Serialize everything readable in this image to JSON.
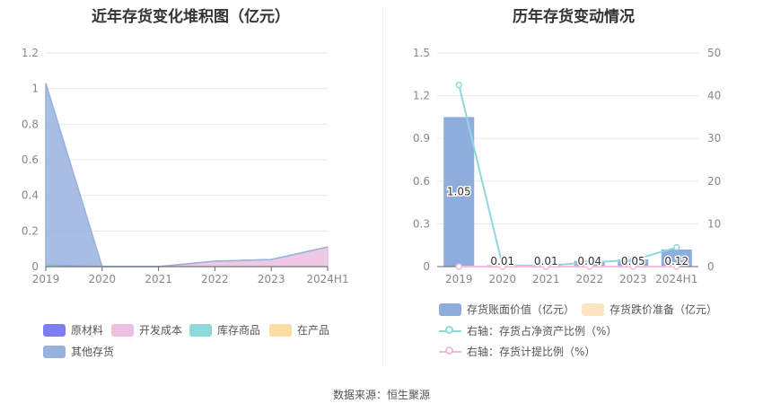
{
  "source_text": "数据来源：恒生聚源",
  "chart_data": [
    {
      "type": "area",
      "title": "近年存货变化堆积图（亿元）",
      "categories": [
        "2019",
        "2020",
        "2021",
        "2022",
        "2023",
        "2024H1"
      ],
      "y_ticks": [
        "0",
        "0.2",
        "0.4",
        "0.6",
        "0.8",
        "1",
        "1.2"
      ],
      "ylim": [
        0,
        1.2
      ],
      "stacked": true,
      "series": [
        {
          "name": "原材料",
          "color": "#7b7ff2",
          "values": [
            0,
            0,
            0,
            0,
            0,
            0
          ]
        },
        {
          "name": "开发成本",
          "color": "#ebbfdf",
          "values": [
            0,
            0,
            0,
            0.03,
            0.04,
            0.11
          ]
        },
        {
          "name": "库存商品",
          "color": "#8fd8dc",
          "values": [
            0.01,
            0,
            0,
            0,
            0,
            0
          ]
        },
        {
          "name": "在产品",
          "color": "#fcdca0",
          "values": [
            0,
            0,
            0,
            0,
            0,
            0
          ]
        },
        {
          "name": "其他存货",
          "color": "#98b2de",
          "values": [
            1.02,
            0,
            0,
            0,
            0,
            0
          ]
        }
      ],
      "legend_position": "bottom"
    },
    {
      "type": "bar",
      "title": "历年存货变动情况",
      "categories": [
        "2019",
        "2020",
        "2021",
        "2022",
        "2023",
        "2024H1"
      ],
      "left_ticks": [
        "0",
        "0.3",
        "0.6",
        "0.9",
        "1.2",
        "1.5"
      ],
      "right_ticks": [
        "0",
        "10",
        "20",
        "30",
        "40",
        "50"
      ],
      "ylim_left": [
        0,
        1.5
      ],
      "ylim_right": [
        0,
        50
      ],
      "bars": {
        "name": "存货账面价值（亿元）",
        "color": "#8eacdc",
        "values": [
          1.05,
          0.01,
          0.01,
          0.04,
          0.05,
          0.12
        ],
        "labels": [
          "1.05",
          "0.01",
          "0.01",
          "0.04",
          "0.05",
          "0.12"
        ]
      },
      "bars_reserve": {
        "name": "存货跌价准备（亿元）",
        "color": "#fde4c2",
        "values": [
          0,
          0,
          0,
          0,
          0,
          0
        ]
      },
      "lines": [
        {
          "name": "右轴：存货占净资产比例（%）",
          "color": "#8fd8dc",
          "axis": "right",
          "values": [
            42.5,
            0.3,
            0.2,
            1.0,
            1.5,
            4.5
          ]
        },
        {
          "name": "右轴：存货计提比例（%）",
          "color": "#f0bcd8",
          "axis": "right",
          "values": [
            0,
            0,
            0,
            0,
            0,
            0
          ]
        }
      ],
      "legend_position": "bottom"
    }
  ]
}
